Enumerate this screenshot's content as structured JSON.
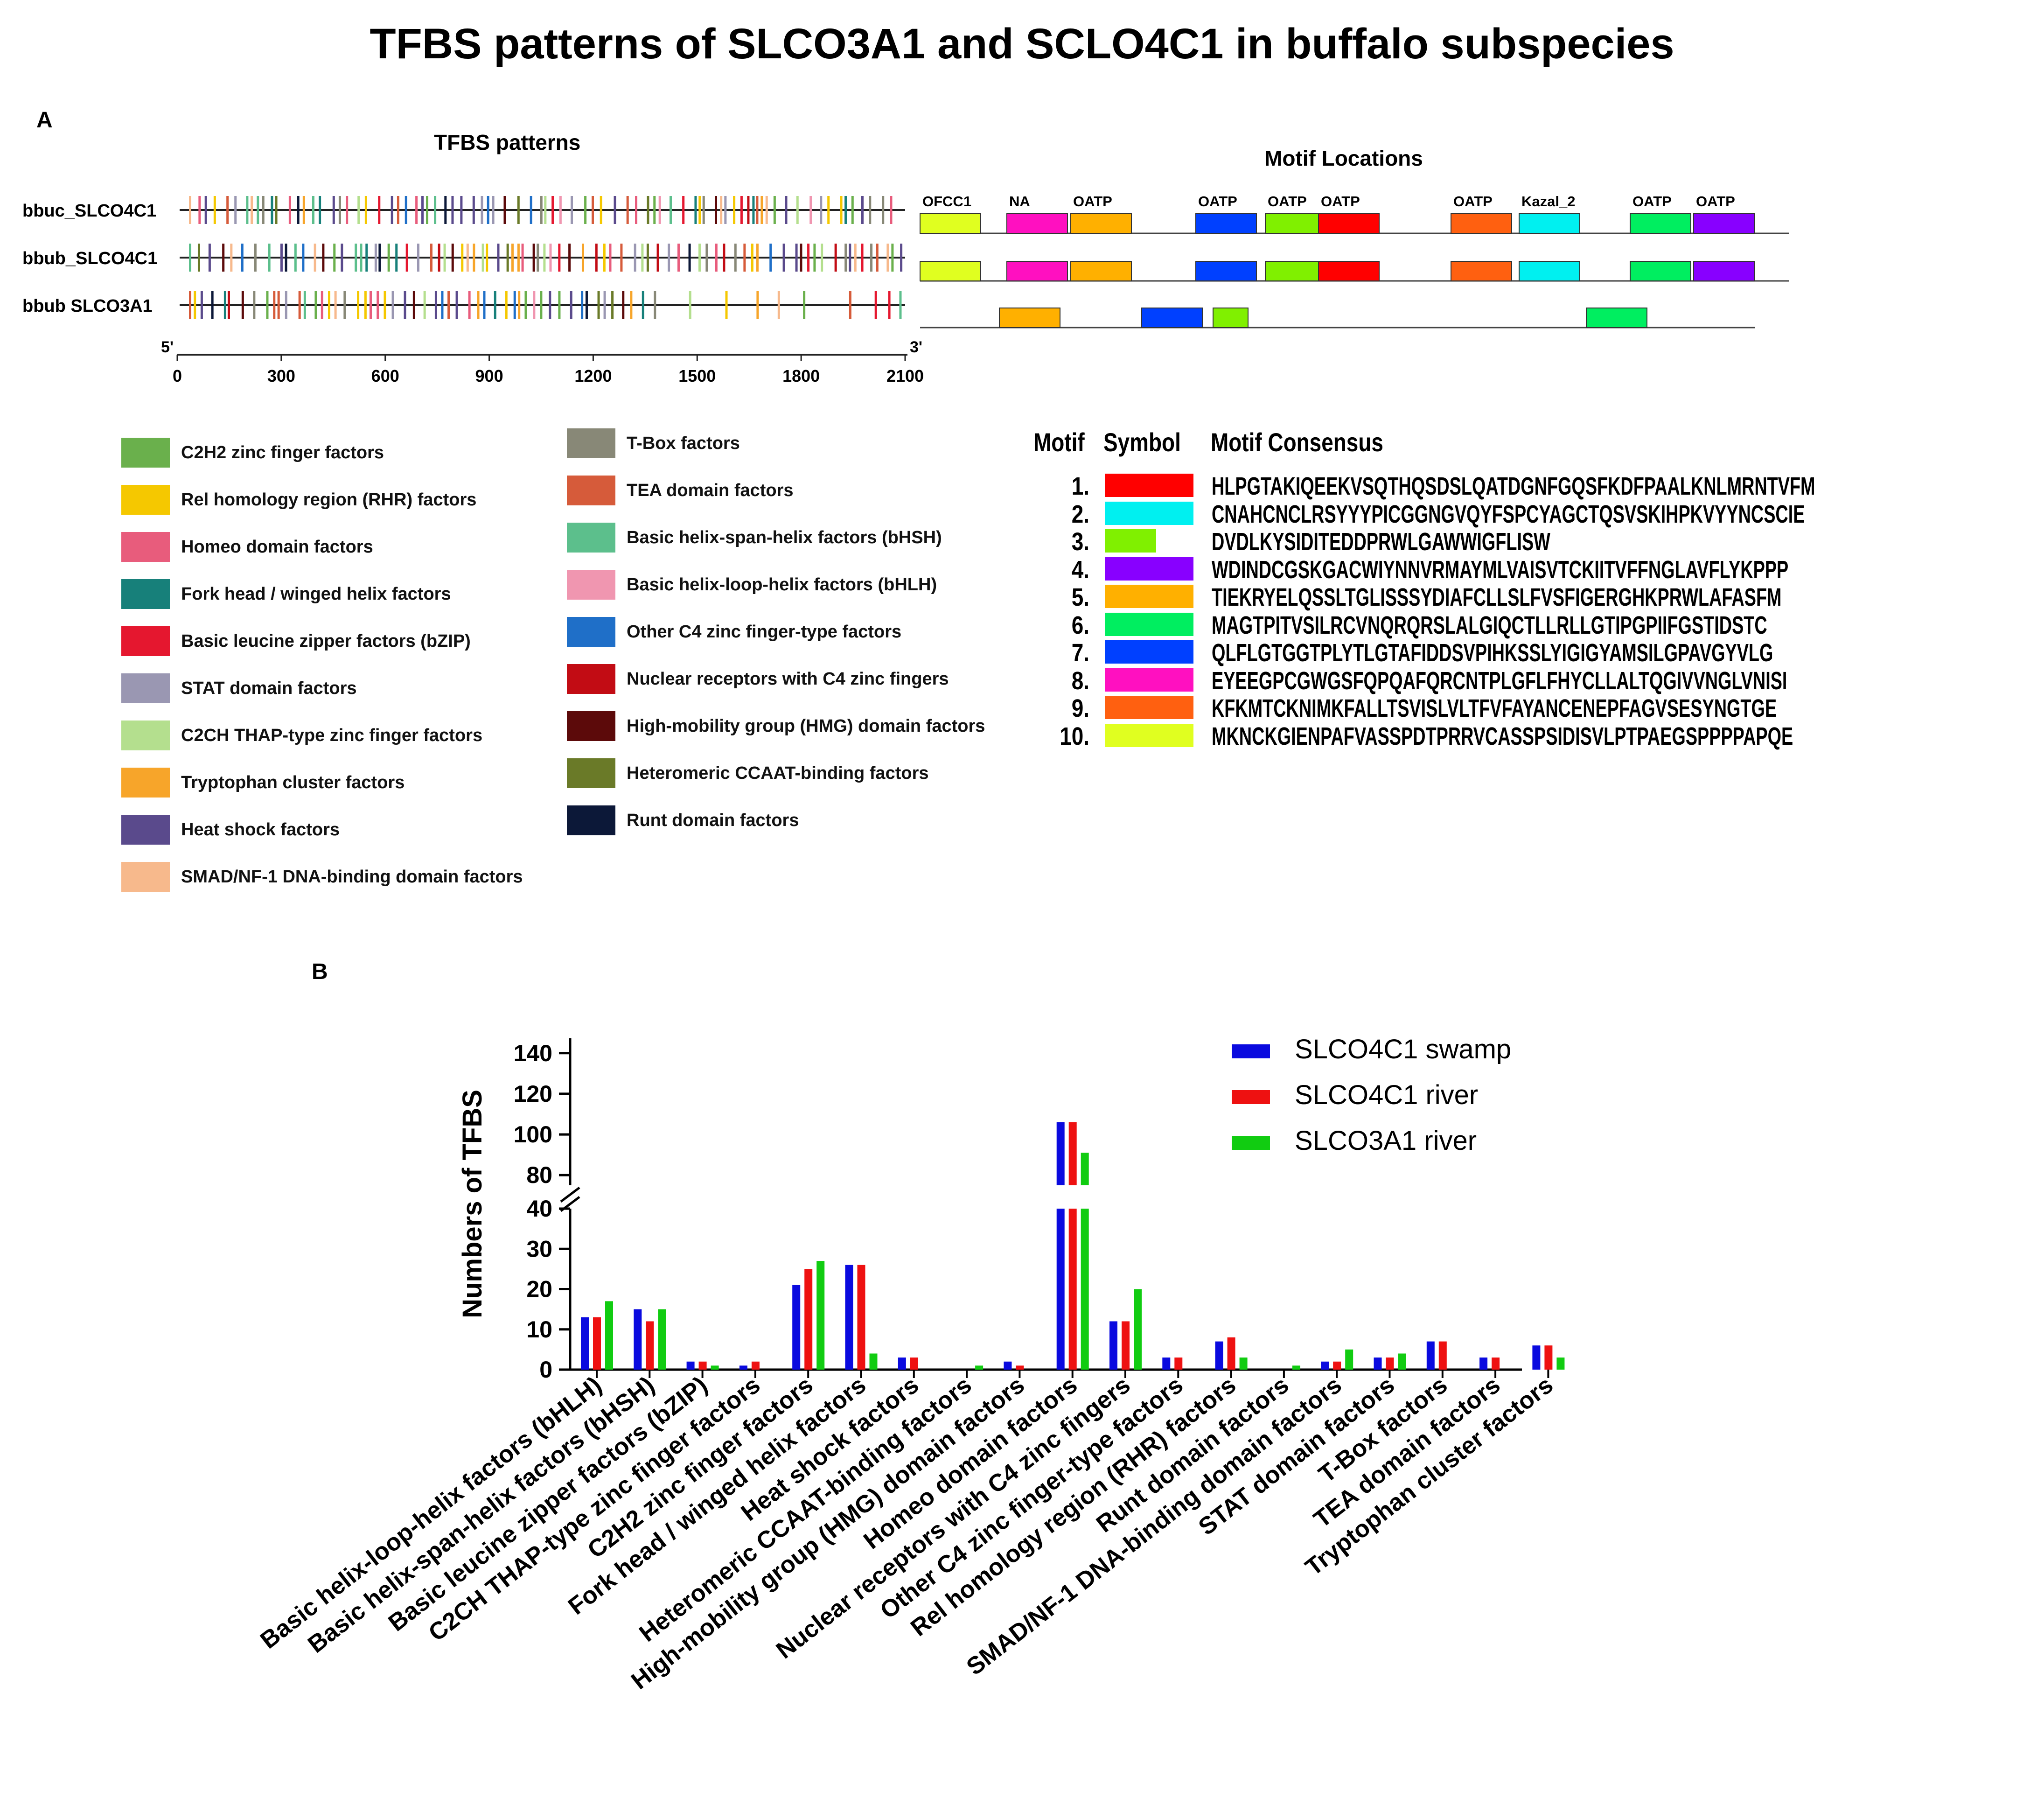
{
  "title": "TFBS patterns of SLCO3A1 and SCLO4C1 in buffalo subspecies",
  "panel_a": {
    "letter": "A",
    "tfbs_title": "TFBS patterns",
    "motif_title": "Motif Locations",
    "tracks": [
      "bbuc_SLCO4C1",
      "bbub_SLCO4C1",
      "bbub SLCO3A1"
    ],
    "axis": {
      "start": "5'",
      "end": "3'",
      "ticks": [
        "0",
        "300",
        "600",
        "900",
        "1200",
        "1500",
        "1800",
        "2100"
      ]
    },
    "motif_rows": [
      {
        "labels": [
          "OFCC1",
          "NA",
          "OATP",
          "OATP",
          "OATP",
          "OATP",
          "OATP",
          "Kazal_2",
          "OATP",
          "OATP"
        ],
        "motifs": [
          10,
          8,
          5,
          7,
          3,
          1,
          9,
          2,
          6,
          4
        ]
      },
      {
        "motifs": [
          10,
          8,
          5,
          7,
          3,
          1,
          9,
          2,
          6,
          4
        ]
      },
      {
        "motifs": [
          5,
          7,
          3,
          6
        ]
      }
    ],
    "legend_col1": [
      {
        "label": "C2H2 zinc finger factors",
        "color": "#6ab04c"
      },
      {
        "label": "Rel homology region (RHR) factors",
        "color": "#f5c800"
      },
      {
        "label": "Homeo domain factors",
        "color": "#e85c7c"
      },
      {
        "label": "Fork head / winged helix factors",
        "color": "#17807a"
      },
      {
        "label": "Basic leucine zipper factors (bZIP)",
        "color": "#e5172f"
      },
      {
        "label": "STAT domain factors",
        "color": "#9a97b2"
      },
      {
        "label": "C2CH THAP-type zinc finger factors",
        "color": "#b4df8e"
      },
      {
        "label": "Tryptophan cluster factors",
        "color": "#f7a52a"
      },
      {
        "label": "Heat shock factors",
        "color": "#5a4a8c"
      },
      {
        "label": "SMAD/NF-1 DNA-binding domain factors",
        "color": "#f7b98c"
      }
    ],
    "legend_col2": [
      {
        "label": "T-Box factors",
        "color": "#888877"
      },
      {
        "label": "TEA domain factors",
        "color": "#d65b3a"
      },
      {
        "label": "Basic helix-span-helix factors (bHSH)",
        "color": "#5cbf8c"
      },
      {
        "label": "Basic helix-loop-helix factors (bHLH)",
        "color": "#f096b0"
      },
      {
        "label": "Other C4 zinc finger-type factors",
        "color": "#1f6fc8"
      },
      {
        "label": "Nuclear receptors with C4 zinc fingers",
        "color": "#c20c14"
      },
      {
        "label": "High-mobility group (HMG) domain factors",
        "color": "#5c0a0a"
      },
      {
        "label": "Heteromeric CCAAT-binding factors",
        "color": "#6a7a28"
      },
      {
        "label": "Runt domain factors",
        "color": "#0c1838"
      }
    ],
    "motif_table": {
      "headers": [
        "Motif",
        "Symbol",
        "Motif Consensus"
      ],
      "rows": [
        {
          "num": "1.",
          "color": "#ff0000",
          "seq": "HLPGTAKIQEEKVSQTHQSDSLQATDGNFGQSFKDFPAALKNLMRNTVFM"
        },
        {
          "num": "2.",
          "color": "#00f0f0",
          "seq": "CNAHCNCLRSYYYPICGGNGVQYFSPCYAGCTQSVSKIHPKVYYNCSCIE"
        },
        {
          "num": "3.",
          "color": "#80f000",
          "seq": "DVDLKYSIDITEDDPRWLGAWWIGFLISW"
        },
        {
          "num": "4.",
          "color": "#8800ff",
          "seq": "WDINDCGSKGACWIYNNVRMAYMLVAISVTCKIITVFFNGLAVFLYKPPP"
        },
        {
          "num": "5.",
          "color": "#ffb000",
          "seq": "TIEKRYELQSSLTGLISSSYDIAFCLLSLFVSFIGERGHKPRWLAFASFM"
        },
        {
          "num": "6.",
          "color": "#00ee60",
          "seq": "MAGTPITVSILRCVNQRQRSLALGIQCTLLRLLGTIPGPIIFGSTIDSTC"
        },
        {
          "num": "7.",
          "color": "#0040ff",
          "seq": "QLFLGTGGTPLYTLGTAFIDDSVPIHKSSLYIGIGYAMSILGPAVGYVLG"
        },
        {
          "num": "8.",
          "color": "#ff10c0",
          "seq": "EYEEGPCGWGSFQPQAFQRCNTPLGFLFHYCLLALTQGIVVNGLVNISI"
        },
        {
          "num": "9.",
          "color": "#ff6010",
          "seq": "KFKMTCKNIMKFALLTSVISLVLTFVFAYANCENEPFAGVSESYNGTGE"
        },
        {
          "num": "10.",
          "color": "#e0ff20",
          "seq": "MKNCKGIENPAFVASSPDTPRRVCASSPSIDISVLPTPAEGSPPPPAPQE"
        }
      ]
    }
  },
  "panel_b": {
    "letter": "B",
    "chart_data": {
      "type": "bar",
      "title": "",
      "xlabel": "",
      "ylabel": "Numbers of TFBS",
      "y_ticks_lower": [
        "0",
        "10",
        "20",
        "30",
        "40"
      ],
      "y_ticks_upper": [
        "80",
        "100",
        "120",
        "140"
      ],
      "ylim_lower": [
        0,
        40
      ],
      "ylim_upper": [
        75,
        145
      ],
      "axis_break": true,
      "legend_position": "top-right",
      "categories": [
        "Basic helix-loop-helix factors (bHLH)",
        "Basic helix-span-helix factors (bHSH)",
        "Basic leucine zipper factors (bZIP)",
        "C2CH THAP-type zinc finger factors",
        "C2H2 zinc finger factors",
        "Fork head / winged helix factors",
        "Heat shock factors",
        "Heteromeric CCAAT-binding factors",
        "High-mobility group (HMG) domain factors",
        "Homeo domain factors",
        "Nuclear receptors with C4 zinc fingers",
        "Other C4 zinc finger-type factors",
        "Rel homology region (RHR) factors",
        "Runt domain factors",
        "SMAD/NF-1 DNA-binding domain factors",
        "STAT domain factors",
        "T-Box factors",
        "TEA domain factors",
        "Tryptophan cluster factors"
      ],
      "series": [
        {
          "name": "SLCO4C1  swamp",
          "color": "#0a0adf",
          "values": [
            13,
            15,
            2,
            1,
            21,
            26,
            3,
            0,
            2,
            106,
            12,
            3,
            7,
            0,
            2,
            3,
            7,
            3,
            6
          ]
        },
        {
          "name": "SLCO4C1  river",
          "color": "#ee1111",
          "values": [
            13,
            12,
            2,
            2,
            25,
            26,
            3,
            0,
            1,
            106,
            12,
            3,
            8,
            0,
            2,
            3,
            7,
            3,
            6
          ]
        },
        {
          "name": "SLCO3A1  river",
          "color": "#11cc11",
          "values": [
            17,
            15,
            1,
            0,
            27,
            4,
            0,
            1,
            0,
            91,
            20,
            0,
            3,
            1,
            5,
            4,
            0,
            0,
            3
          ]
        }
      ]
    }
  }
}
